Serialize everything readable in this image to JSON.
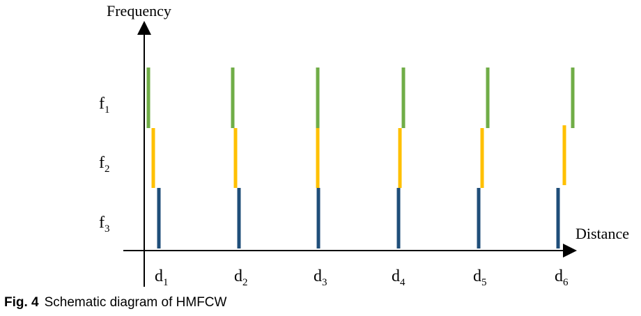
{
  "diagram": {
    "y_axis_label": "Frequency",
    "x_axis_label": "Distance",
    "frequencies": [
      {
        "base": "f",
        "sub": "1",
        "color": "#70ad47"
      },
      {
        "base": "f",
        "sub": "2",
        "color": "#ffc000"
      },
      {
        "base": "f",
        "sub": "3",
        "color": "#1f4e79"
      }
    ],
    "distances": [
      {
        "base": "d",
        "sub": "1"
      },
      {
        "base": "d",
        "sub": "2"
      },
      {
        "base": "d",
        "sub": "3"
      },
      {
        "base": "d",
        "sub": "4"
      },
      {
        "base": "d",
        "sub": "5"
      },
      {
        "base": "d",
        "sub": "6"
      }
    ]
  },
  "caption": {
    "label": "Fig. 4",
    "text": "Schematic diagram of HMFCW"
  }
}
